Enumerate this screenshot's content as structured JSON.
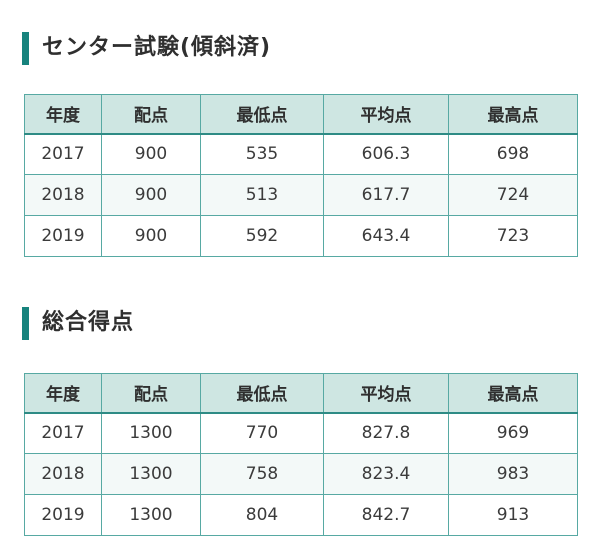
{
  "colors": {
    "accent": "#17837d",
    "border": "#57a9a3",
    "header_border": "#2e8b85",
    "header_bg": "#cee6e2",
    "stripe_bg": "#f3f9f8",
    "text": "#3b3b3b"
  },
  "sections": [
    {
      "title": "センター試験(傾斜済)",
      "table": {
        "headers": [
          "年度",
          "配点",
          "最低点",
          "平均点",
          "最高点"
        ],
        "rows": [
          [
            "2017",
            "900",
            "535",
            "606.3",
            "698"
          ],
          [
            "2018",
            "900",
            "513",
            "617.7",
            "724"
          ],
          [
            "2019",
            "900",
            "592",
            "643.4",
            "723"
          ]
        ]
      }
    },
    {
      "title": "総合得点",
      "table": {
        "headers": [
          "年度",
          "配点",
          "最低点",
          "平均点",
          "最高点"
        ],
        "rows": [
          [
            "2017",
            "1300",
            "770",
            "827.8",
            "969"
          ],
          [
            "2018",
            "1300",
            "758",
            "823.4",
            "983"
          ],
          [
            "2019",
            "1300",
            "804",
            "842.7",
            "913"
          ]
        ]
      }
    }
  ]
}
